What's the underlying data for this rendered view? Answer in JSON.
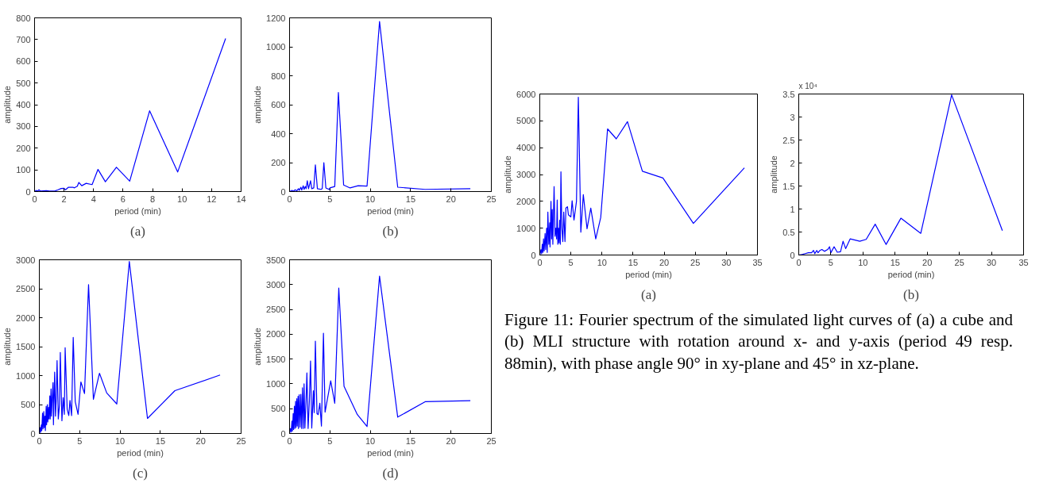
{
  "chart_data": [
    {
      "type": "line",
      "title": "(a)",
      "xlabel": "period (min)",
      "ylabel": "amplitude",
      "color": "#0000ff",
      "xlim": [
        0,
        14
      ],
      "ylim": [
        0,
        800
      ],
      "xticks": [
        0,
        2,
        4,
        6,
        8,
        10,
        12,
        14
      ],
      "yticks": [
        0,
        100,
        200,
        300,
        400,
        500,
        600,
        700,
        800
      ],
      "x": [
        0,
        0.1,
        0.2,
        0.3,
        0.4,
        0.6,
        0.8,
        1.0,
        1.2,
        1.4,
        1.6,
        1.8,
        2.0,
        2.1,
        2.3,
        2.6,
        2.7,
        2.9,
        3.0,
        3.2,
        3.5,
        3.9,
        4.3,
        4.8,
        5.55,
        6.45,
        7.8,
        9.7,
        12.95
      ],
      "values": [
        0,
        5,
        2,
        8,
        2,
        3,
        4,
        2,
        2,
        3,
        8,
        14,
        15,
        8,
        20,
        20,
        17,
        25,
        42,
        27,
        38,
        32,
        102,
        45,
        112,
        48,
        372,
        90,
        705
      ]
    },
    {
      "type": "line",
      "title": "(b)",
      "xlabel": "period (min)",
      "ylabel": "amplitude",
      "color": "#0000ff",
      "xlim": [
        0,
        25
      ],
      "ylim": [
        0,
        1200
      ],
      "xticks": [
        0,
        5,
        10,
        15,
        20,
        25
      ],
      "yticks": [
        0,
        200,
        400,
        600,
        800,
        1000,
        1200
      ],
      "x": [
        0,
        0.3,
        0.5,
        0.7,
        0.9,
        1.1,
        1.2,
        1.4,
        1.5,
        1.7,
        1.8,
        1.95,
        2.05,
        2.2,
        2.35,
        2.6,
        2.75,
        3.0,
        3.2,
        3.45,
        3.9,
        4.05,
        4.25,
        4.5,
        4.9,
        5.0,
        5.6,
        6.05,
        6.7,
        7.5,
        8.5,
        9.6,
        11.15,
        13.4,
        16.8,
        22.4
      ],
      "values": [
        0,
        8,
        3,
        12,
        5,
        20,
        8,
        30,
        10,
        40,
        15,
        35,
        20,
        75,
        20,
        75,
        20,
        25,
        185,
        20,
        15,
        20,
        200,
        25,
        15,
        25,
        35,
        685,
        45,
        25,
        40,
        38,
        1175,
        30,
        15,
        20
      ]
    },
    {
      "type": "line",
      "title": "(c)",
      "xlabel": "period (min)",
      "ylabel": "amplitude",
      "color": "#0000ff",
      "xlim": [
        0,
        25
      ],
      "ylim": [
        0,
        3000
      ],
      "xticks": [
        0,
        5,
        10,
        15,
        20,
        25
      ],
      "yticks": [
        0,
        500,
        1000,
        1500,
        2000,
        2500,
        3000
      ],
      "x": [
        0,
        0.1,
        0.15,
        0.25,
        0.3,
        0.4,
        0.45,
        0.55,
        0.6,
        0.7,
        0.75,
        0.85,
        0.9,
        1.0,
        1.05,
        1.15,
        1.2,
        1.3,
        1.35,
        1.45,
        1.5,
        1.6,
        1.7,
        1.75,
        1.9,
        2.0,
        2.1,
        2.2,
        2.35,
        2.5,
        2.6,
        2.8,
        2.95,
        3.1,
        3.2,
        3.45,
        3.65,
        3.8,
        4.0,
        4.2,
        4.45,
        4.8,
        5.15,
        5.6,
        6.1,
        6.7,
        7.45,
        8.35,
        9.6,
        11.15,
        13.4,
        16.8,
        22.4
      ],
      "values": [
        0,
        100,
        20,
        150,
        50,
        350,
        80,
        380,
        100,
        300,
        50,
        470,
        150,
        500,
        200,
        450,
        250,
        650,
        250,
        770,
        300,
        620,
        880,
        150,
        1060,
        300,
        600,
        1260,
        250,
        500,
        1400,
        220,
        620,
        330,
        1480,
        420,
        310,
        570,
        310,
        1660,
        550,
        330,
        890,
        690,
        2570,
        590,
        1040,
        700,
        510,
        2970,
        260,
        740,
        1010
      ]
    },
    {
      "type": "line",
      "title": "(d)",
      "xlabel": "period (min)",
      "ylabel": "amplitude",
      "color": "#0000ff",
      "xlim": [
        0,
        25
      ],
      "ylim": [
        0,
        3500
      ],
      "xticks": [
        0,
        5,
        10,
        15,
        20,
        25
      ],
      "yticks": [
        0,
        500,
        1000,
        1500,
        2000,
        2500,
        3000,
        3500
      ],
      "x": [
        0,
        0.1,
        0.2,
        0.3,
        0.35,
        0.45,
        0.5,
        0.6,
        0.65,
        0.75,
        0.8,
        0.9,
        0.95,
        1.05,
        1.1,
        1.2,
        1.3,
        1.4,
        1.5,
        1.6,
        1.7,
        1.8,
        1.9,
        2.05,
        2.15,
        2.3,
        2.45,
        2.6,
        2.75,
        2.95,
        3.05,
        3.2,
        3.4,
        3.55,
        3.75,
        3.95,
        4.2,
        4.4,
        5.1,
        5.6,
        6.1,
        6.75,
        8.4,
        9.6,
        11.15,
        13.4,
        16.8,
        22.4
      ],
      "values": [
        0,
        100,
        30,
        250,
        50,
        400,
        80,
        550,
        100,
        650,
        120,
        700,
        150,
        750,
        100,
        780,
        130,
        790,
        100,
        920,
        100,
        1000,
        110,
        700,
        1220,
        100,
        640,
        1460,
        110,
        860,
        420,
        1860,
        400,
        380,
        610,
        150,
        2020,
        430,
        1060,
        610,
        2930,
        950,
        380,
        140,
        3170,
        330,
        640,
        660
      ]
    },
    {
      "type": "line",
      "title": "(a)",
      "xlabel": "period (min)",
      "ylabel": "amplitude",
      "color": "#0000ff",
      "xlim": [
        0,
        35
      ],
      "ylim": [
        0,
        6000
      ],
      "xticks": [
        0,
        5,
        10,
        15,
        20,
        25,
        30,
        35
      ],
      "yticks": [
        0,
        1000,
        2000,
        3000,
        4000,
        5000,
        6000
      ],
      "x": [
        0,
        0.2,
        0.3,
        0.4,
        0.5,
        0.6,
        0.7,
        0.85,
        0.95,
        1.1,
        1.2,
        1.3,
        1.45,
        1.6,
        1.65,
        1.8,
        1.9,
        2.0,
        2.1,
        2.3,
        2.45,
        2.6,
        2.7,
        2.8,
        2.9,
        3.0,
        3.1,
        3.2,
        3.3,
        3.4,
        3.55,
        3.7,
        3.85,
        4.05,
        4.2,
        4.45,
        4.6,
        5.0,
        5.2,
        5.5,
        5.9,
        6.2,
        6.6,
        7.0,
        7.6,
        8.2,
        9.0,
        9.8,
        10.9,
        12.3,
        14.1,
        16.5,
        19.8,
        24.7,
        32.9
      ],
      "values": [
        0,
        200,
        50,
        400,
        100,
        600,
        150,
        800,
        200,
        1000,
        100,
        1600,
        400,
        1200,
        300,
        2000,
        600,
        1700,
        400,
        2550,
        700,
        1000,
        600,
        2050,
        400,
        1000,
        450,
        1300,
        400,
        3100,
        1000,
        500,
        1600,
        500,
        1750,
        1800,
        1500,
        1420,
        2020,
        1300,
        2000,
        5880,
        850,
        2250,
        980,
        1750,
        600,
        1400,
        4700,
        4330,
        4970,
        3120,
        2870,
        1180,
        3250
      ]
    },
    {
      "type": "line",
      "title": "(b)",
      "xlabel": "period (min)",
      "ylabel": "amplitude",
      "annotations": [
        "x 10⁴"
      ],
      "color": "#0000ff",
      "xlim": [
        0,
        35
      ],
      "ylim": [
        0,
        3.5
      ],
      "xticks": [
        0,
        5,
        10,
        15,
        20,
        25,
        30,
        35
      ],
      "yticks": [
        0,
        0.5,
        1,
        1.5,
        2,
        2.5,
        3,
        3.5
      ],
      "x": [
        0,
        0.5,
        1,
        1.5,
        2,
        2.3,
        2.5,
        2.8,
        3,
        3.3,
        3.6,
        4,
        4.5,
        4.8,
        5,
        5.5,
        6,
        6.5,
        6.9,
        7.3,
        8,
        9.5,
        10.5,
        11.9,
        13.6,
        15.9,
        19.0,
        23.8,
        31.7
      ],
      "values": [
        0,
        0.01,
        0.03,
        0.05,
        0.05,
        0.1,
        0.03,
        0.1,
        0.05,
        0.1,
        0.12,
        0.08,
        0.12,
        0.18,
        0.05,
        0.18,
        0.06,
        0.07,
        0.3,
        0.14,
        0.35,
        0.3,
        0.34,
        0.67,
        0.23,
        0.8,
        0.47,
        3.48,
        0.53
      ]
    },
    {
      "type": "other",
      "annotations": [
        "Figure 11: Fourier spectrum of the simulated light curves of (a) a cube and (b) MLI structure with rotation around x- and y-axis (period 49 resp. 88min), with phase angle 90° in xy-plane and 45° in xz-plane."
      ]
    }
  ]
}
